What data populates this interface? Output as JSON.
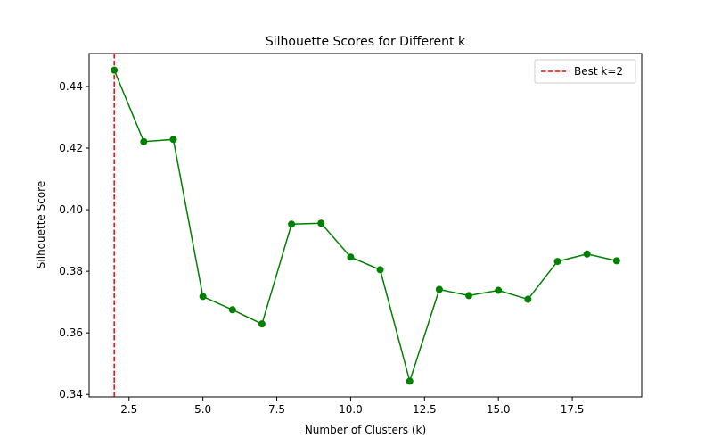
{
  "chart_data": {
    "type": "line",
    "title": "Silhouette Scores for Different k",
    "xlabel": "Number of Clusters (k)",
    "ylabel": "Silhouette Score",
    "xlim": [
      1.15,
      19.85
    ],
    "ylim": [
      0.3392,
      0.4507
    ],
    "xticks": [
      2.5,
      5.0,
      7.5,
      10.0,
      12.5,
      15.0,
      17.5
    ],
    "xtick_labels": [
      "2.5",
      "5.0",
      "7.5",
      "10.0",
      "12.5",
      "15.0",
      "17.5"
    ],
    "yticks": [
      0.34,
      0.36,
      0.38,
      0.4,
      0.42,
      0.44
    ],
    "ytick_labels": [
      "0.34",
      "0.36",
      "0.38",
      "0.40",
      "0.42",
      "0.44"
    ],
    "grid": false,
    "legend_position": "top-right",
    "series": [
      {
        "color": "#008000",
        "marker": "circle",
        "x": [
          2,
          3,
          4,
          5,
          6,
          7,
          8,
          9,
          10,
          11,
          12,
          13,
          14,
          15,
          16,
          17,
          18,
          19
        ],
        "y": [
          0.4453,
          0.4221,
          0.4228,
          0.3718,
          0.3675,
          0.3629,
          0.3953,
          0.3956,
          0.3846,
          0.3805,
          0.3443,
          0.3741,
          0.3721,
          0.3738,
          0.3709,
          0.3832,
          0.3856,
          0.3834
        ]
      }
    ],
    "reference_line": {
      "orientation": "vertical",
      "x": 2,
      "color": "#ff0000",
      "style": "dashed",
      "label": "Best k=2"
    }
  }
}
